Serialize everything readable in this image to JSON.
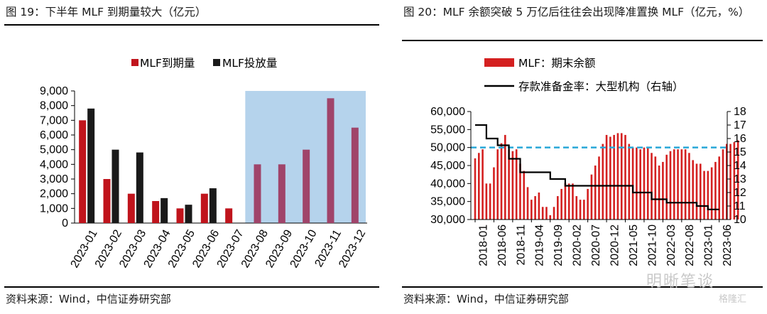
{
  "left": {
    "title": "图 19：下半年 MLF 到期量较大（亿元）",
    "source": "资料来源：Wind，中信证券研究部"
  },
  "right": {
    "title": "图 20：MLF 余额突破 5 万亿后往往会出现降准置换 MLF（亿元，%）",
    "source": "资料来源：Wind，中信证券研究部"
  },
  "watermark": "明晰笔谈",
  "watermark2": "格隆汇",
  "chart_data": [
    {
      "type": "bar",
      "categories": [
        "2023-01",
        "2023-02",
        "2023-03",
        "2023-04",
        "2023-05",
        "2023-06",
        "2023-07",
        "2023-08",
        "2023-09",
        "2023-10",
        "2023-11",
        "2023-12"
      ],
      "series": [
        {
          "name": "MLF到期量",
          "values": [
            7000,
            3000,
            2000,
            1500,
            1000,
            2000,
            1000,
            4000,
            4000,
            5000,
            8500,
            6500
          ],
          "color": "#c0141c",
          "highlight_color": "#a0446a"
        },
        {
          "name": "MLF投放量",
          "values": [
            7800,
            5000,
            4810,
            1700,
            1250,
            2370,
            null,
            null,
            null,
            null,
            null,
            null
          ],
          "color": "#1a1a1a"
        }
      ],
      "ylim": [
        0,
        9000
      ],
      "yticks": [
        "0",
        "1,000",
        "2,000",
        "3,000",
        "4,000",
        "5,000",
        "6,000",
        "7,000",
        "8,000",
        "9,000"
      ],
      "highlight_range": [
        "2023-08",
        "2023-12"
      ],
      "highlight_color": "#b5d3ec",
      "legend": "top"
    },
    {
      "type": "bar+line",
      "x_ticks": [
        "2018-01",
        "2018-06",
        "2018-11",
        "2019-04",
        "2019-09",
        "2020-02",
        "2020-07",
        "2020-12",
        "2021-05",
        "2021-10",
        "2022-03",
        "2022-08",
        "2023-01",
        "2023-06"
      ],
      "bar_series": {
        "name": "MLF：期末余额",
        "color": "#d42020",
        "values": [
          47000,
          48500,
          49500,
          40000,
          40000,
          44500,
          49500,
          51200,
          53500,
          49500,
          49000,
          49500,
          45500,
          43500,
          39000,
          35500,
          36500,
          37500,
          33500,
          33500,
          31200,
          33500,
          36500,
          38500,
          40200,
          40000,
          40000,
          36500,
          35500,
          35500,
          38500,
          42500,
          45000,
          47500,
          51000,
          53500,
          53000,
          53500,
          54000,
          54000,
          53500,
          51000,
          50000,
          50000,
          49500,
          50000,
          50000,
          48500,
          47500,
          45000,
          46000,
          48000,
          49000,
          49500,
          49500,
          49500,
          49500,
          48500,
          46500,
          45500,
          45500,
          43500,
          43500,
          44500,
          46000,
          47500,
          49500,
          51000,
          51000,
          51500,
          52000
        ]
      },
      "line_series": {
        "name": "存款准备金率：大型机构（右轴）",
        "color": "#000000",
        "points": [
          [
            "2018-01",
            17
          ],
          [
            "2018-04",
            17
          ],
          [
            "2018-04",
            16.0
          ],
          [
            "2018-07",
            16.0
          ],
          [
            "2018-07",
            15.5
          ],
          [
            "2018-10",
            15.5
          ],
          [
            "2018-10",
            14.5
          ],
          [
            "2019-01",
            14.5
          ],
          [
            "2019-01",
            13.5
          ],
          [
            "2019-09",
            13.5
          ],
          [
            "2019-09",
            13.0
          ],
          [
            "2020-01",
            13.0
          ],
          [
            "2020-01",
            12.5
          ],
          [
            "2021-07",
            12.5
          ],
          [
            "2021-07",
            12.0
          ],
          [
            "2021-12",
            12.0
          ],
          [
            "2021-12",
            11.5
          ],
          [
            "2022-04",
            11.5
          ],
          [
            "2022-04",
            11.25
          ],
          [
            "2022-12",
            11.25
          ],
          [
            "2022-12",
            11.0
          ],
          [
            "2023-03",
            11.0
          ],
          [
            "2023-03",
            10.75
          ],
          [
            "2023-06",
            10.75
          ]
        ]
      },
      "reference_line": {
        "value": 50000,
        "color": "#29a8d8",
        "style": "dashed"
      },
      "ylim": [
        30000,
        60000
      ],
      "yticks": [
        "30,000",
        "35,000",
        "40,000",
        "45,000",
        "50,000",
        "55,000",
        "60,000"
      ],
      "y2lim": [
        10,
        18
      ],
      "y2ticks": [
        "10",
        "11",
        "12",
        "13",
        "14",
        "15",
        "16",
        "17",
        "18"
      ],
      "legend": "top"
    }
  ]
}
